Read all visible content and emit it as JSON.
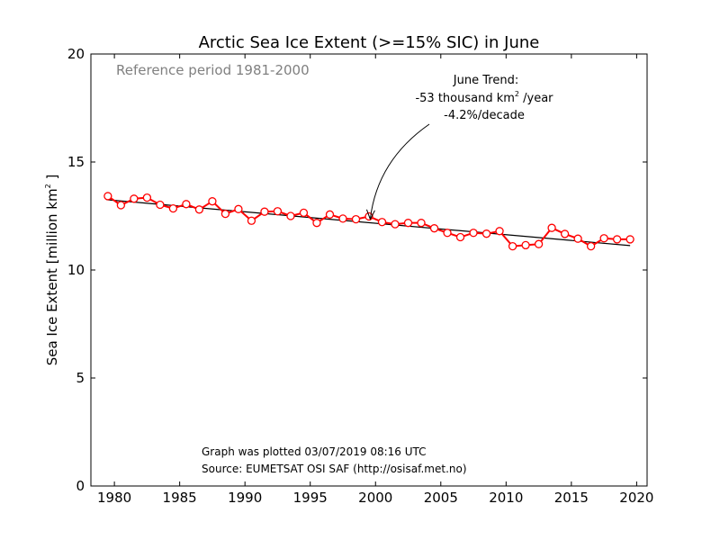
{
  "chart_data": {
    "type": "line",
    "title": "Arctic Sea Ice Extent (>=15% SIC) in June",
    "xlabel": "",
    "ylabel_main": "Sea Ice Extent [million km",
    "ylabel_sup": "2",
    "ylabel_end": " ]",
    "xlim": [
      1978.2,
      2020.8
    ],
    "ylim": [
      0,
      20
    ],
    "xticks": [
      1980,
      1985,
      1990,
      1995,
      2000,
      2005,
      2010,
      2015,
      2020
    ],
    "yticks": [
      0,
      5,
      10,
      15,
      20
    ],
    "grid": false,
    "reference_note": "Reference period 1981-2000",
    "annotation": {
      "line1": "June Trend:",
      "line2_pre": "-53 thousand km",
      "line2_sup": "2",
      "line2_post": " /year",
      "line3": "-4.2%/decade",
      "arrow_target_x": 1999.6,
      "arrow_target_y": 12.3
    },
    "footer": {
      "line1": "Graph was plotted 03/07/2019 08:16 UTC",
      "line2": "Source: EUMETSAT OSI SAF (http://osisaf.met.no)"
    },
    "series": [
      {
        "color": "#ff0000",
        "x": [
          1979.5,
          1980.5,
          1981.5,
          1982.5,
          1983.5,
          1984.5,
          1985.5,
          1986.5,
          1987.5,
          1988.5,
          1989.5,
          1990.5,
          1991.5,
          1992.5,
          1993.5,
          1994.5,
          1995.5,
          1996.5,
          1997.5,
          1998.5,
          1999.5,
          2000.5,
          2001.5,
          2002.5,
          2003.5,
          2004.5,
          2005.5,
          2006.5,
          2007.5,
          2008.5,
          2009.5,
          2010.5,
          2011.5,
          2012.5,
          2013.5,
          2014.5,
          2015.5,
          2016.5,
          2017.5,
          2018.5,
          2019.5
        ],
        "y": [
          13.42,
          13.0,
          13.3,
          13.35,
          13.02,
          12.85,
          13.05,
          12.8,
          13.18,
          12.6,
          12.82,
          12.28,
          12.7,
          12.72,
          12.5,
          12.65,
          12.18,
          12.57,
          12.38,
          12.35,
          12.48,
          12.22,
          12.12,
          12.18,
          12.18,
          11.93,
          11.72,
          11.52,
          11.72,
          11.68,
          11.8,
          11.1,
          11.15,
          11.2,
          11.95,
          11.67,
          11.45,
          11.1,
          11.47,
          11.42,
          11.42
        ]
      }
    ],
    "trend": {
      "color": "#000000",
      "x": [
        1979.5,
        2019.5
      ],
      "y": [
        13.25,
        11.13
      ]
    }
  }
}
